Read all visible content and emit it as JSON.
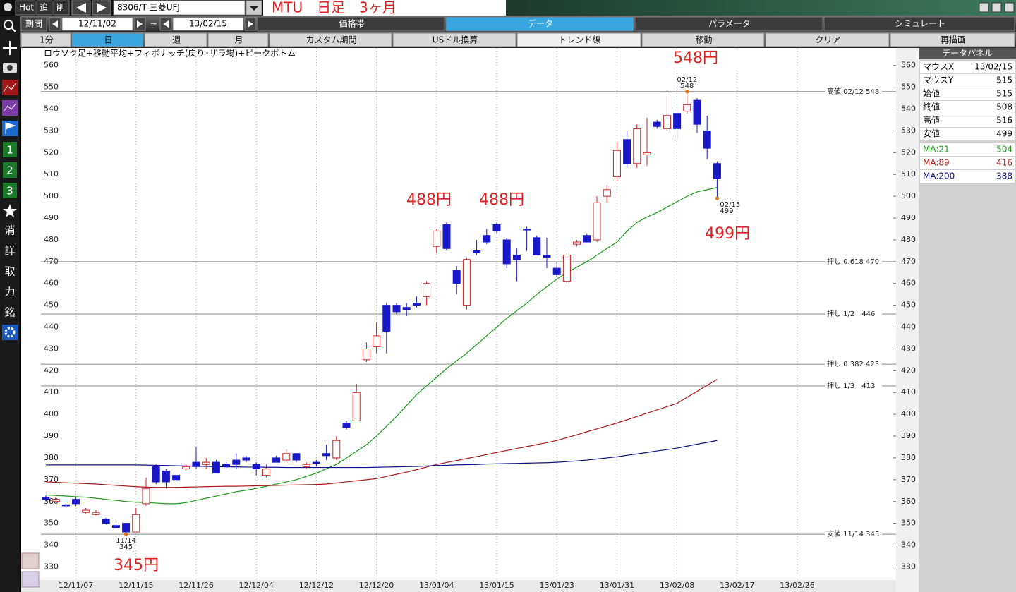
{
  "toolbar": {
    "hot": "Hot",
    "add": "追",
    "del": "削",
    "symbol": "8306/T 三菱UFJ",
    "title": "MTU　日足　3ヶ月"
  },
  "period": {
    "label": "期間",
    "from": "12/11/02",
    "sep": "~",
    "to": "13/02/15"
  },
  "tabs": [
    "価格帯",
    "データ",
    "パラメータ",
    "シミュレート"
  ],
  "buttons": [
    "1分",
    "日",
    "週",
    "月",
    "カスタム期間",
    "USドル換算",
    "トレンド線",
    "移動",
    "クリア",
    "再描画"
  ],
  "side_tools": [
    "1",
    "2",
    "3",
    "消",
    "詳",
    "取",
    "力",
    "銘"
  ],
  "chart_data": {
    "type": "candlestick",
    "title": "ロウソク足+移動平均+フィボナッチ(戻り･ザラ場)+ピークボトム",
    "x_labels": [
      "12/11/07",
      "12/11/15",
      "12/11/26",
      "12/12/04",
      "12/12/12",
      "12/12/20",
      "13/01/04",
      "13/01/15",
      "13/01/23",
      "13/01/31",
      "13/02/08",
      "13/02/17",
      "13/02/26"
    ],
    "open": [
      362,
      360,
      358.5,
      361,
      355,
      354,
      352,
      349,
      350,
      346,
      359,
      376,
      374,
      372,
      375,
      378,
      377,
      378,
      377,
      379,
      380,
      377,
      372,
      380,
      379,
      382,
      376,
      378,
      382,
      380,
      396,
      397,
      425,
      431,
      450,
      450,
      449,
      451,
      454,
      477,
      487,
      466,
      450,
      475,
      482,
      487,
      480,
      473,
      485,
      481,
      473,
      467,
      461,
      478,
      482,
      480,
      500,
      509,
      526,
      515,
      519,
      534,
      531,
      538,
      539,
      544,
      530,
      515
    ],
    "high": [
      363,
      362,
      359,
      362,
      357,
      356,
      352.5,
      349.5,
      350,
      357,
      371,
      377,
      375,
      372,
      377,
      385,
      380,
      379,
      378,
      382,
      381,
      378,
      377,
      381,
      384,
      382,
      378,
      379,
      386,
      390,
      397,
      414,
      433,
      442,
      451,
      451,
      451,
      454,
      461,
      485,
      488,
      468,
      472,
      480,
      485,
      488,
      481,
      476,
      486,
      482,
      481,
      470,
      474,
      480,
      483,
      500,
      505,
      525,
      530,
      533,
      536,
      535,
      547,
      539,
      548,
      545,
      537,
      516
    ],
    "low": [
      360,
      359.5,
      357,
      358,
      354.5,
      353.5,
      349.5,
      347.5,
      345,
      346,
      358,
      368,
      366,
      369,
      374,
      375,
      375,
      373,
      375,
      375,
      378,
      372,
      371,
      378,
      378,
      378,
      375,
      376,
      379,
      379,
      393,
      397,
      424,
      428,
      428,
      446,
      445,
      449,
      450,
      474,
      475,
      455,
      448,
      473,
      478,
      483,
      467,
      461,
      475,
      473,
      467,
      463,
      460,
      477,
      479,
      479,
      497,
      507,
      513,
      513,
      514,
      531,
      530,
      526,
      538,
      529,
      517,
      499
    ],
    "close": [
      361,
      361,
      358,
      359,
      356,
      355,
      350,
      348,
      346,
      354,
      366,
      369,
      369,
      370,
      376,
      376,
      378,
      373,
      376,
      377,
      379,
      375,
      375,
      378,
      382,
      379,
      377,
      377.5,
      381,
      388,
      394,
      410,
      430,
      436,
      438,
      447,
      448,
      450,
      460,
      484,
      476,
      460,
      471,
      474,
      479,
      484,
      469,
      471,
      484.5,
      473,
      472,
      464,
      473,
      479,
      479,
      497,
      503,
      521,
      515,
      531,
      520,
      532,
      537,
      531,
      542,
      533,
      522,
      508
    ],
    "up_color": "#cc2020",
    "down_color": "#1818c8",
    "series": [
      {
        "name": "MA:21",
        "color": "#1a9a1a",
        "values": [
          363,
          362.8,
          362.5,
          362.2,
          362,
          361.5,
          361,
          360.5,
          360,
          359.7,
          359.5,
          359.3,
          359,
          359,
          359.5,
          360.5,
          361.5,
          362.5,
          363.5,
          364.5,
          365.2,
          366,
          367,
          368,
          369,
          370,
          371.5,
          373,
          375,
          377,
          380,
          383,
          386,
          390,
          394.5,
          399,
          404,
          409,
          413,
          417,
          421,
          424.5,
          428,
          432,
          436,
          440,
          444,
          447.5,
          451,
          455,
          458.5,
          462,
          465,
          467.5,
          470,
          473,
          476,
          479,
          484,
          488,
          490.5,
          492.5,
          495,
          497.5,
          500,
          502,
          503,
          504
        ]
      },
      {
        "name": "MA:89",
        "color": "#aa1a1a",
        "values": [
          369,
          368.8,
          368.6,
          368.4,
          368.2,
          368,
          367.7,
          367.4,
          367.1,
          366.8,
          366.6,
          366.5,
          366.5,
          366.5,
          366.6,
          366.7,
          366.8,
          366.9,
          367,
          367,
          367.1,
          367.2,
          367.3,
          367.4,
          367.5,
          367.6,
          367.7,
          367.8,
          368,
          368.5,
          369,
          369.5,
          370,
          370.5,
          371.5,
          372.5,
          373.5,
          374.6,
          375.8,
          377,
          377.9,
          378.8,
          379.7,
          380.6,
          381.5,
          382.5,
          383.4,
          384.3,
          385.2,
          386.1,
          387,
          388,
          389.3,
          390.6,
          392,
          393.3,
          394.6,
          396,
          397.5,
          399,
          400.5,
          402,
          403.5,
          405,
          407.8,
          410.5,
          413.3,
          416
        ]
      },
      {
        "name": "MA:200",
        "color": "#101080",
        "values": [
          376.8,
          376.8,
          376.8,
          376.8,
          376.8,
          376.8,
          376.8,
          376.8,
          376.8,
          376.8,
          376.7,
          376.6,
          376.5,
          376.4,
          376.3,
          376.2,
          376.1,
          376,
          375.9,
          375.9,
          375.8,
          375.8,
          375.7,
          375.7,
          375.6,
          375.6,
          375.6,
          375.6,
          375.6,
          375.6,
          375.6,
          375.6,
          375.6,
          375.7,
          375.8,
          375.9,
          376,
          376.1,
          376.3,
          376.5,
          376.6,
          376.8,
          376.9,
          377,
          377.2,
          377.3,
          377.4,
          377.5,
          377.6,
          377.7,
          377.8,
          378,
          378.3,
          378.6,
          379,
          379.5,
          380,
          380.5,
          381.2,
          381.8,
          382.5,
          383.2,
          383.8,
          384.5,
          385.4,
          386.3,
          387.1,
          388
        ]
      }
    ],
    "ylim": [
      324,
      568
    ],
    "yticks": [
      330,
      340,
      350,
      360,
      370,
      380,
      390,
      400,
      410,
      420,
      430,
      440,
      450,
      460,
      470,
      480,
      490,
      500,
      510,
      520,
      530,
      540,
      550,
      560
    ],
    "grid": "x",
    "hlines": [
      {
        "label": "高値 02/12 548",
        "value": 548
      },
      {
        "label": "押し 0.618 470",
        "value": 470
      },
      {
        "label": "押し 1/2　446",
        "value": 446
      },
      {
        "label": "押し 0.382 423",
        "value": 423
      },
      {
        "label": "押し 1/3　413",
        "value": 413
      },
      {
        "label": "安値 11/14 345",
        "value": 345
      }
    ],
    "peaks": [
      {
        "date": "02/12",
        "value": 548
      },
      {
        "date": "02/15",
        "value": 499
      },
      {
        "date": "11/14",
        "value": 345
      }
    ],
    "callouts": [
      "548円",
      "488円",
      "488円",
      "499円",
      "345円"
    ]
  },
  "data_panel": {
    "title": "データパネル",
    "rows": [
      [
        "マウスX",
        "13/02/15"
      ],
      [
        "マウスY",
        515
      ],
      [
        "始値",
        515
      ],
      [
        "終値",
        508
      ],
      [
        "高値",
        516
      ],
      [
        "安値",
        499
      ],
      [
        "MA:21",
        504
      ],
      [
        "MA:89",
        416
      ],
      [
        "MA:200",
        388
      ]
    ]
  }
}
